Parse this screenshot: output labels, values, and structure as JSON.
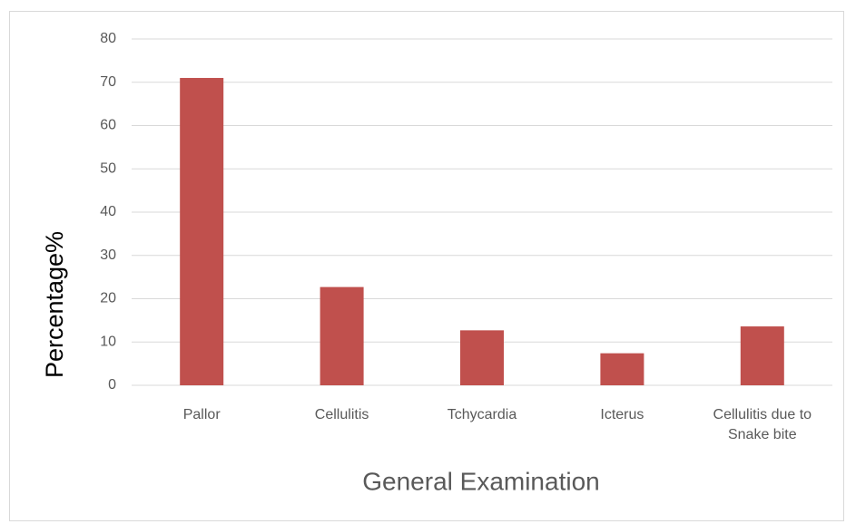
{
  "chart_data": {
    "type": "bar",
    "categories": [
      "Pallor",
      "Cellulitis",
      "Tchycardia",
      "Icterus",
      "Cellulitis due to Snake bite"
    ],
    "values": [
      71,
      22.7,
      12.7,
      7.4,
      13.6
    ],
    "color": "#c0504d",
    "ylim": [
      0,
      80
    ],
    "yticks": [
      0,
      10,
      20,
      30,
      40,
      50,
      60,
      70,
      80
    ],
    "grid": true,
    "x_label": "General Examination",
    "y_label": "Percentage%"
  }
}
